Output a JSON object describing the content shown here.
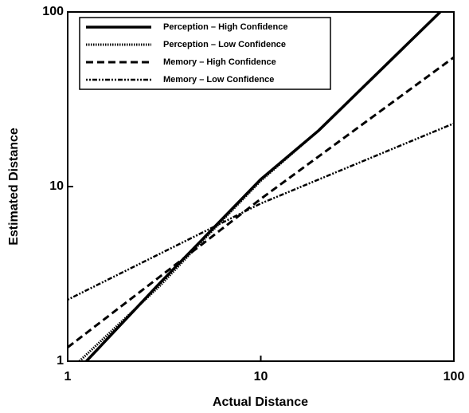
{
  "chart_data": {
    "type": "line",
    "xlabel": "Actual Distance",
    "ylabel": "Estimated Distance",
    "xscale": "log",
    "yscale": "log",
    "xlim": [
      1,
      100
    ],
    "ylim": [
      1,
      100
    ],
    "xticks": [
      1,
      10,
      100
    ],
    "yticks": [
      1,
      10,
      100
    ],
    "legend": "upper left",
    "series": [
      {
        "name": "Perception – High Confidence",
        "color": "#000000",
        "style": "solid",
        "width": 3.5,
        "x": [
          1.25,
          3,
          5,
          10,
          20,
          85
        ],
        "values": [
          1,
          2.8,
          5,
          11,
          21,
          100
        ]
      },
      {
        "name": "Perception – Low Confidence",
        "color": "#000000",
        "style": "dotted",
        "width": 3,
        "x": [
          1.15,
          3,
          5,
          10,
          20,
          85
        ],
        "values": [
          1,
          2.7,
          4.9,
          10.8,
          21,
          100
        ]
      },
      {
        "name": "Memory – High Confidence",
        "color": "#000000",
        "style": "dashed",
        "width": 3,
        "x": [
          1,
          5,
          10,
          100
        ],
        "values": [
          1.2,
          4.7,
          8.5,
          55
        ]
      },
      {
        "name": "Memory – Low Confidence",
        "color": "#000000",
        "style": "dashdot",
        "width": 2.5,
        "x": [
          1,
          10,
          100
        ],
        "values": [
          2.25,
          8,
          23
        ]
      }
    ]
  }
}
